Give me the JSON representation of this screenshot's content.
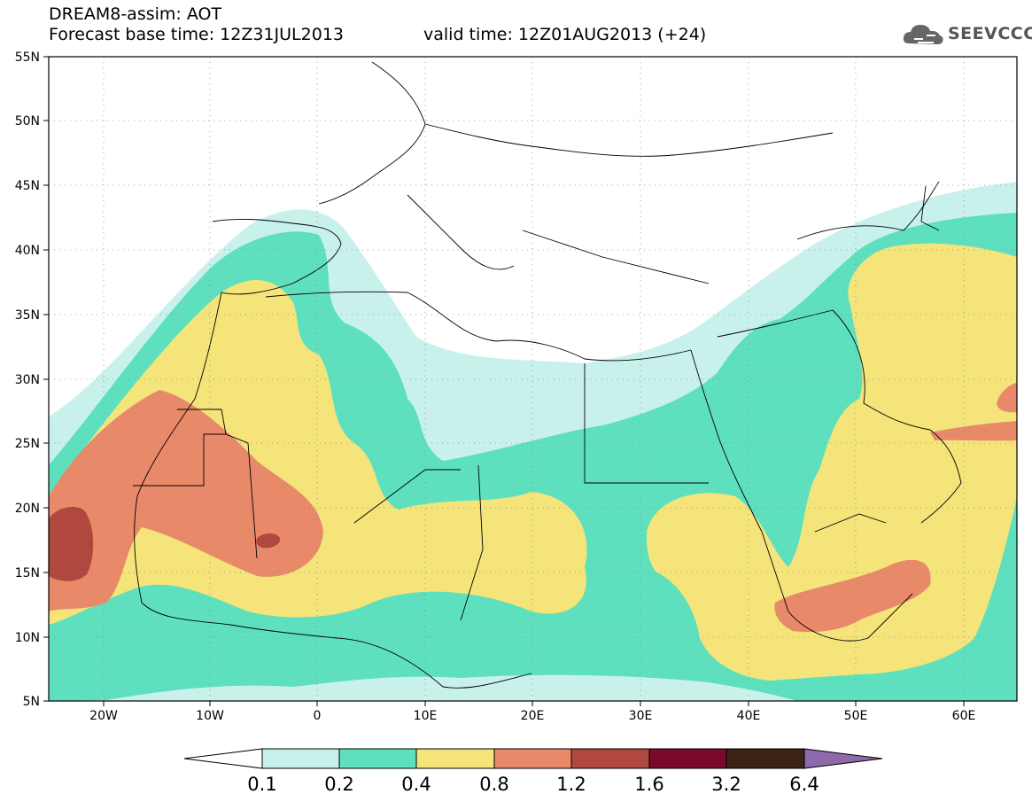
{
  "header": {
    "title": "DREAM8-assim: AOT",
    "base_time": "Forecast base time: 12Z31JUL2013",
    "valid_time": "valid time: 12Z01AUG2013 (+24)"
  },
  "logo": {
    "text": "SEEVCCC",
    "icon": "cloud-icon"
  },
  "map": {
    "lon_labels": [
      "20W",
      "10W",
      "0",
      "10E",
      "20E",
      "30E",
      "40E",
      "50E",
      "60E"
    ],
    "lat_labels": [
      "55N",
      "50N",
      "45N",
      "40N",
      "35N",
      "30N",
      "25N",
      "20N",
      "15N",
      "10N",
      "5N"
    ],
    "colors": {
      "c01": "#c9f1ec",
      "c02": "#5ee0bf",
      "c04": "#f4e47a",
      "c08": "#e8896a",
      "c12": "#b0483f",
      "c16": "#7a0a2a",
      "c32": "#3c2214",
      "c64": "#8e6aac"
    }
  },
  "colorbar": {
    "labels": [
      "0.1",
      "0.2",
      "0.4",
      "0.8",
      "1.2",
      "1.6",
      "3.2",
      "6.4"
    ],
    "colors": [
      "#ffffff",
      "#c9f1ec",
      "#5ee0bf",
      "#f4e47a",
      "#e8896a",
      "#b0483f",
      "#7a0a2a",
      "#3c2214",
      "#8e6aac"
    ]
  }
}
